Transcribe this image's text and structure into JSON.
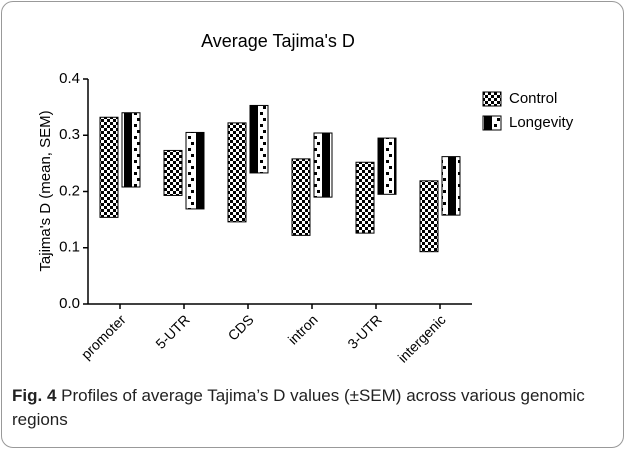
{
  "chart_data": {
    "type": "floating-bar",
    "title": "Average Tajima's D",
    "y_label": "Tajima's D (mean, SEM)",
    "categories": [
      "promoter",
      "5-UTR",
      "CDS",
      "intron",
      "3-UTR",
      "intergenic"
    ],
    "series": [
      {
        "name": "Control",
        "color": "#000000",
        "values": [
          0.243,
          0.233,
          0.234,
          0.19,
          0.189,
          0.156
        ],
        "errors": [
          0.089,
          0.04,
          0.088,
          0.068,
          0.063,
          0.063
        ]
      },
      {
        "name": "Longevity",
        "color": "#000000",
        "values": [
          0.274,
          0.237,
          0.293,
          0.247,
          0.245,
          0.21
        ],
        "errors": [
          0.066,
          0.068,
          0.06,
          0.057,
          0.05,
          0.052
        ]
      }
    ],
    "ylim": [
      0,
      0.4
    ],
    "yticks": [
      {
        "value": 0,
        "label": "0.0"
      },
      0.1,
      0.2,
      0.3,
      0.4
    ],
    "legend": "right"
  },
  "caption": {
    "label": "Fig. 4",
    "text": "Profiles of average Tajima’s D values (±SEM) across various genomic regions"
  }
}
